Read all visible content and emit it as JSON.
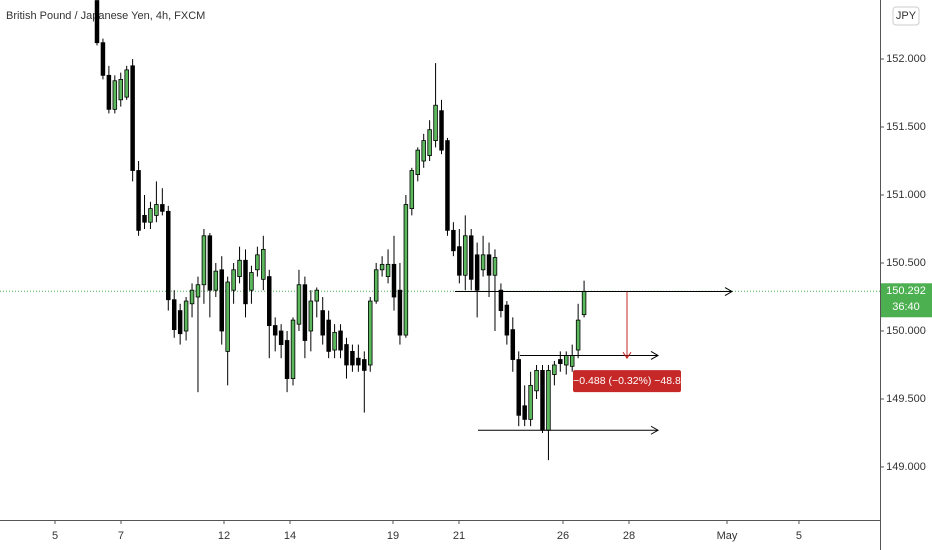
{
  "chart_data": {
    "type": "candlestick",
    "title": "British Pound / Japanese Yen, 4h, FXCM",
    "currency": "JPY",
    "up_color": "#5cb85c",
    "down_color": "#000000",
    "open": [
      152.43,
      152.12,
      151.88,
      151.63,
      151.7,
      151.72,
      151.95,
      151.18,
      150.85,
      150.8,
      150.85,
      150.93,
      150.88,
      150.23,
      150.15,
      150.0,
      150.2,
      150.25,
      150.34,
      150.7,
      150.3,
      150.45,
      149.85,
      150.3,
      150.4,
      150.52,
      150.3,
      150.45,
      150.38,
      150.4,
      150.04,
      150.0,
      149.93,
      149.65,
      150.05,
      150.34,
      150.0,
      150.22,
      150.15,
      150.08,
      149.86,
      150.0,
      149.9,
      149.85,
      149.8,
      149.79,
      149.75,
      150.22,
      150.45,
      150.4,
      150.49,
      150.3,
      149.97,
      150.9,
      151.15,
      151.25,
      151.29,
      151.4,
      151.62,
      151.4,
      150.74,
      150.62,
      150.41,
      150.7,
      150.56,
      150.45,
      150.56,
      150.41,
      150.3,
      150.19,
      150.01,
      149.79,
      149.45,
      149.35,
      149.56,
      149.71,
      149.27,
      149.68,
      149.79,
      149.75,
      149.74,
      149.86,
      150.12
    ],
    "high": [
      152.43,
      152.15,
      151.95,
      151.88,
      151.9,
      151.95,
      152.0,
      151.25,
      151.0,
      150.95,
      151.1,
      151.05,
      150.92,
      150.3,
      150.2,
      150.25,
      150.35,
      150.4,
      150.75,
      150.72,
      150.5,
      150.55,
      150.4,
      150.5,
      150.62,
      150.6,
      150.48,
      150.62,
      150.7,
      150.45,
      150.1,
      150.05,
      150.0,
      150.1,
      150.45,
      150.4,
      150.3,
      150.32,
      150.25,
      150.15,
      150.05,
      150.05,
      149.95,
      149.9,
      149.9,
      149.85,
      150.25,
      150.5,
      150.55,
      150.6,
      150.7,
      150.5,
      151.0,
      151.2,
      151.35,
      151.45,
      151.55,
      151.97,
      151.7,
      151.42,
      150.8,
      150.75,
      150.85,
      150.75,
      150.65,
      150.7,
      150.65,
      150.6,
      150.35,
      150.22,
      150.1,
      149.85,
      149.6,
      149.7,
      149.75,
      149.75,
      149.75,
      149.78,
      149.85,
      149.85,
      149.9,
      150.2,
      150.37
    ],
    "low": [
      152.1,
      151.85,
      151.6,
      151.6,
      151.65,
      151.7,
      151.1,
      150.7,
      150.75,
      150.75,
      150.8,
      150.85,
      150.15,
      149.95,
      149.9,
      149.93,
      150.1,
      149.55,
      150.2,
      150.1,
      150.25,
      149.9,
      149.6,
      150.2,
      150.35,
      150.1,
      150.2,
      150.4,
      150.3,
      149.8,
      149.85,
      149.8,
      149.55,
      149.6,
      150.0,
      149.8,
      149.85,
      150.1,
      149.9,
      149.8,
      149.8,
      149.8,
      149.65,
      149.7,
      149.7,
      149.4,
      149.7,
      150.2,
      150.4,
      150.35,
      150.15,
      149.9,
      149.95,
      150.85,
      151.1,
      151.2,
      151.25,
      151.35,
      151.3,
      150.7,
      150.55,
      150.35,
      150.3,
      150.3,
      150.1,
      150.4,
      150.25,
      150.0,
      150.1,
      149.9,
      149.7,
      149.3,
      149.3,
      149.3,
      149.5,
      149.25,
      149.05,
      149.6,
      149.7,
      149.68,
      149.7,
      149.8,
      150.1
    ],
    "close": [
      152.12,
      151.88,
      151.63,
      151.84,
      151.85,
      151.92,
      151.18,
      150.74,
      150.8,
      150.9,
      150.93,
      150.88,
      150.23,
      150.01,
      149.98,
      150.22,
      150.3,
      150.34,
      150.7,
      150.3,
      150.44,
      150.0,
      150.36,
      150.45,
      150.52,
      150.2,
      150.43,
      150.56,
      150.6,
      150.04,
      149.97,
      149.9,
      149.65,
      150.08,
      150.34,
      149.93,
      150.22,
      150.3,
      149.97,
      149.85,
      149.99,
      149.86,
      149.75,
      149.75,
      149.75,
      149.71,
      150.22,
      150.45,
      150.49,
      150.49,
      150.25,
      149.97,
      150.93,
      151.18,
      151.33,
      151.4,
      151.48,
      151.66,
      151.33,
      150.74,
      150.59,
      150.41,
      150.7,
      150.38,
      150.3,
      150.56,
      150.41,
      150.54,
      150.15,
      149.97,
      149.79,
      149.38,
      149.35,
      149.6,
      149.71,
      149.27,
      149.71,
      149.75,
      149.76,
      149.82,
      149.82,
      150.08,
      150.29
    ],
    "ylim": [
      148.61,
      152.434
    ],
    "yticks": [
      {
        "value": 149,
        "label": "149.000"
      },
      {
        "value": 149.5,
        "label": "149.500"
      },
      {
        "value": 150,
        "label": "150.000"
      },
      {
        "value": 150.5,
        "label": "150.500"
      },
      {
        "value": 151,
        "label": "151.000"
      },
      {
        "value": 151.5,
        "label": "151.500"
      },
      {
        "value": 152,
        "label": "152.000"
      }
    ],
    "xlim": [
      -16.33,
      131.82
    ],
    "xticks": [
      {
        "value": -7.07,
        "label": "5"
      },
      {
        "value": 4.04,
        "label": "7"
      },
      {
        "value": 21.38,
        "label": "12"
      },
      {
        "value": 32.49,
        "label": "14"
      },
      {
        "value": 49.83,
        "label": "19"
      },
      {
        "value": 60.94,
        "label": "21"
      },
      {
        "value": 78.45,
        "label": "26"
      },
      {
        "value": 89.56,
        "label": "28"
      },
      {
        "value": 106.06,
        "label": "May"
      },
      {
        "value": 118.18,
        "label": "5"
      }
    ],
    "last_price": 150.292,
    "countdown": "36:40",
    "price_line_color": "#4caf50",
    "rays": [
      150.29,
      149.82,
      149.27
    ],
    "measure": {
      "from": 150.29,
      "to": 149.8,
      "label": "−0.488 (−0.32%) −48.8",
      "color": "#c62828"
    }
  }
}
